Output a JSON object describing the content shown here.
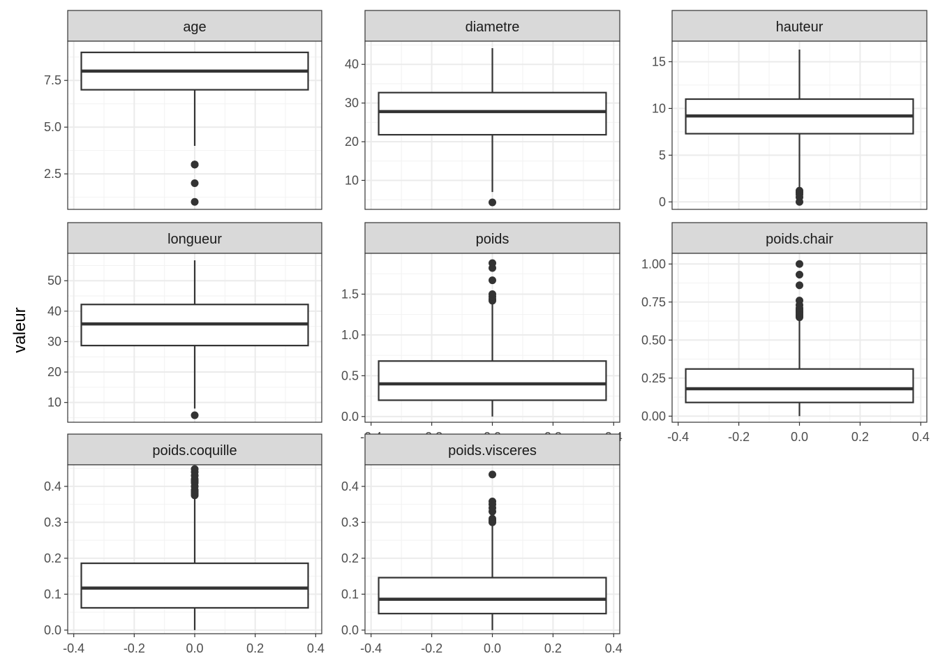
{
  "chart_data": {
    "type": "boxplot",
    "layout": "facet-wrap 3 columns, free y scales",
    "ylabel": "valeur",
    "xlabel": "",
    "x_ticks": [
      "-0.4",
      "-0.2",
      "0.0",
      "0.2",
      "0.4"
    ],
    "xlim": [
      -0.42,
      0.42
    ],
    "box_x": [
      -0.375,
      0.375
    ],
    "grid": "on",
    "theme": "bw",
    "panels": [
      {
        "name": "age",
        "ylim": [
          0.6,
          9.6
        ],
        "y_ticks": [
          2.5,
          5.0,
          7.5
        ],
        "y_tick_labels": [
          "2.5",
          "5.0",
          "7.5"
        ],
        "whisker_low": 4,
        "q1": 7,
        "median": 8,
        "q3": 9,
        "whisker_high": 9,
        "outliers": [
          3,
          3,
          3,
          2,
          1
        ]
      },
      {
        "name": "diametre",
        "ylim": [
          2.5,
          46
        ],
        "y_ticks": [
          10,
          20,
          30,
          40
        ],
        "y_tick_labels": [
          "10",
          "20",
          "30",
          "40"
        ],
        "whisker_low": 7,
        "q1": 21.8,
        "median": 27.8,
        "q3": 32.7,
        "whisker_high": 44.2,
        "outliers": [
          4.3
        ]
      },
      {
        "name": "hauteur",
        "ylim": [
          -0.8,
          17.2
        ],
        "y_ticks": [
          0,
          5,
          10,
          15
        ],
        "y_tick_labels": [
          "0",
          "5",
          "10",
          "15"
        ],
        "whisker_low": 1.5,
        "q1": 7.3,
        "median": 9.2,
        "q3": 11.0,
        "whisker_high": 16.3,
        "outliers": [
          1.2,
          1.0,
          0.8,
          0.5,
          0.0
        ]
      },
      {
        "name": "longueur",
        "ylim": [
          3.5,
          59
        ],
        "y_ticks": [
          10,
          20,
          30,
          40,
          50
        ],
        "y_tick_labels": [
          "10",
          "20",
          "30",
          "40",
          "50"
        ],
        "whisker_low": 8,
        "q1": 28.7,
        "median": 35.8,
        "q3": 42.2,
        "whisker_high": 56.7,
        "outliers": [
          5.8
        ]
      },
      {
        "name": "poids",
        "ylim": [
          -0.07,
          2.0
        ],
        "y_ticks": [
          0.0,
          0.5,
          1.0,
          1.5
        ],
        "y_tick_labels": [
          "0.0",
          "0.5",
          "1.0",
          "1.5"
        ],
        "whisker_low": 0.0,
        "q1": 0.2,
        "median": 0.4,
        "q3": 0.68,
        "whisker_high": 1.4,
        "outliers": [
          1.42,
          1.44,
          1.47,
          1.5,
          1.67,
          1.82,
          1.88
        ]
      },
      {
        "name": "poids.chair",
        "ylim": [
          -0.04,
          1.07
        ],
        "y_ticks": [
          0.0,
          0.25,
          0.5,
          0.75,
          1.0
        ],
        "y_tick_labels": [
          "0.00",
          "0.25",
          "0.50",
          "0.75",
          "1.00"
        ],
        "whisker_low": 0.0,
        "q1": 0.09,
        "median": 0.18,
        "q3": 0.31,
        "whisker_high": 0.64,
        "outliers": [
          0.65,
          0.66,
          0.67,
          0.68,
          0.69,
          0.7,
          0.71,
          0.73,
          0.76,
          0.86,
          0.93,
          1.0
        ]
      },
      {
        "name": "poids.coquille",
        "ylim": [
          -0.01,
          0.46
        ],
        "y_ticks": [
          0.0,
          0.1,
          0.2,
          0.3,
          0.4
        ],
        "y_tick_labels": [
          "0.0",
          "0.1",
          "0.2",
          "0.3",
          "0.4"
        ],
        "whisker_low": 0.0,
        "q1": 0.062,
        "median": 0.117,
        "q3": 0.186,
        "whisker_high": 0.37,
        "outliers": [
          0.375,
          0.38,
          0.385,
          0.39,
          0.4,
          0.41,
          0.415,
          0.42,
          0.43,
          0.44,
          0.448
        ]
      },
      {
        "name": "poids.visceres",
        "ylim": [
          -0.01,
          0.46
        ],
        "y_ticks": [
          0.0,
          0.1,
          0.2,
          0.3,
          0.4
        ],
        "y_tick_labels": [
          "0.0",
          "0.1",
          "0.2",
          "0.3",
          "0.4"
        ],
        "whisker_low": 0.0,
        "q1": 0.046,
        "median": 0.086,
        "q3": 0.146,
        "whisker_high": 0.298,
        "outliers": [
          0.3,
          0.305,
          0.31,
          0.33,
          0.34,
          0.35,
          0.358,
          0.433
        ]
      }
    ]
  }
}
